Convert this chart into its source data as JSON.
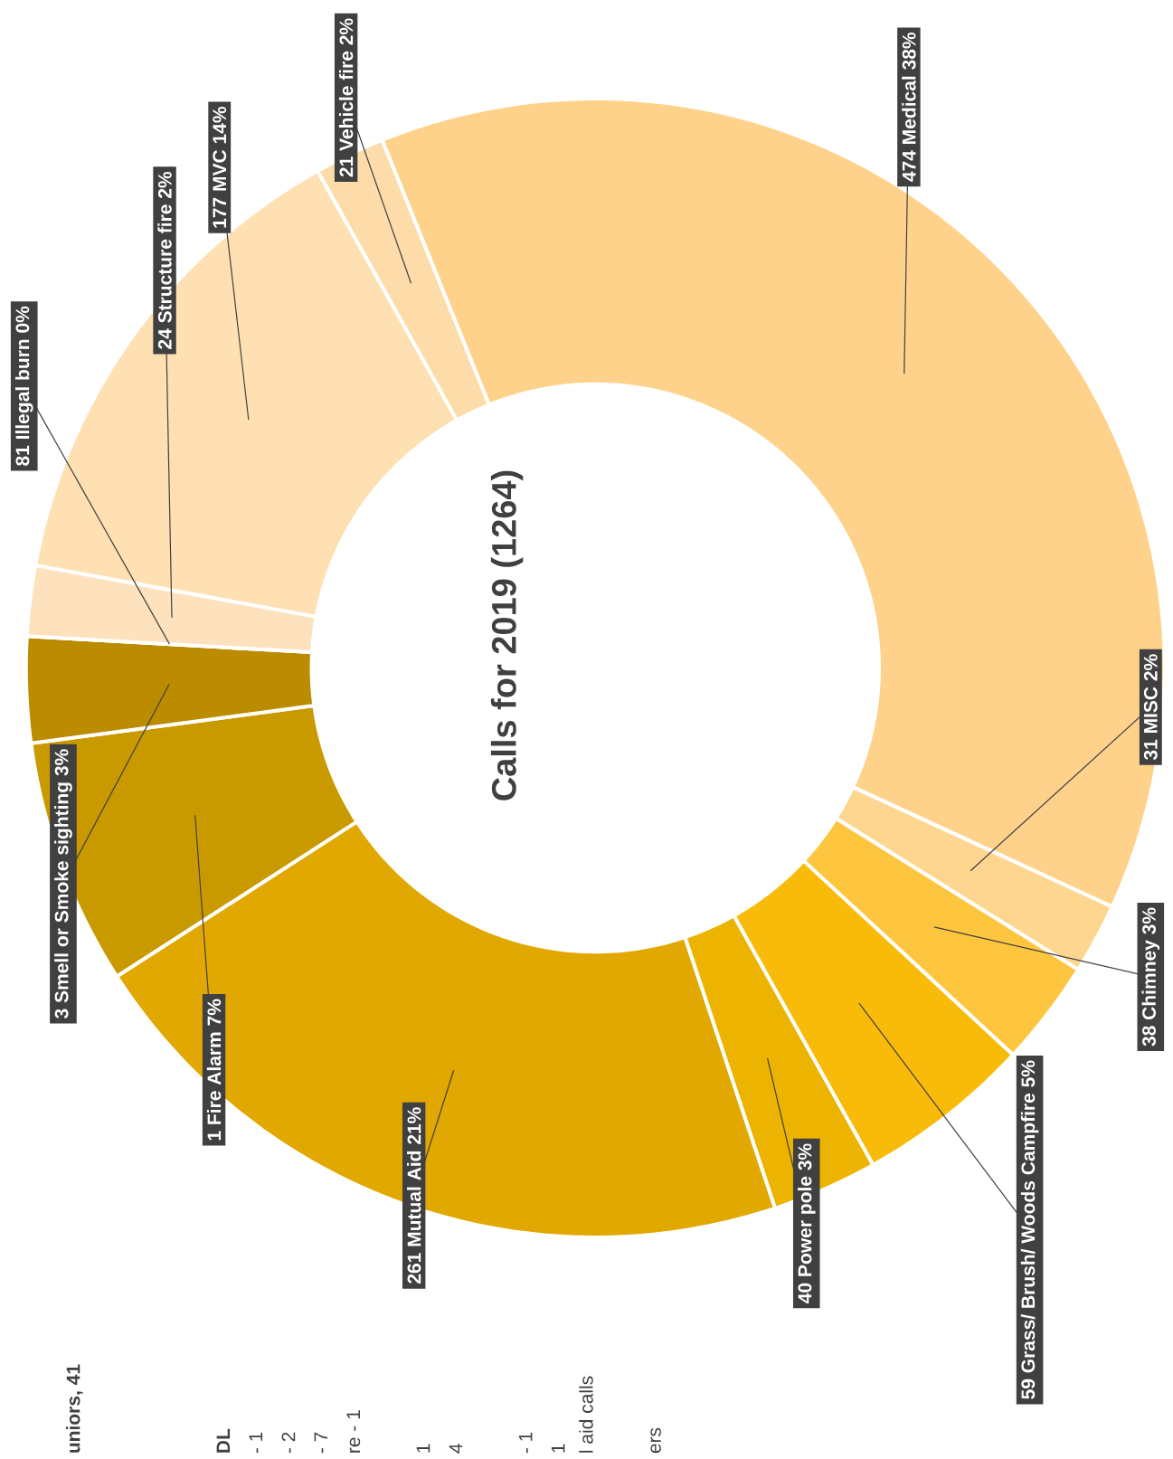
{
  "chart_data": {
    "type": "donut",
    "title": "Calls for 2019 (1264)",
    "categories": [
      "474 Medical 38%",
      "31 MISC 2%",
      "38 Chimney 3%",
      "59 Grass/    Brush/    Woods  Campfire 5%",
      "40 Power pole 3%",
      "261 Mutual Aid 21%",
      "1 Fire Alarm 7%",
      "3 Smell or Smoke sighting 3%",
      "81 Illegal burn 0%",
      "24 Structure fire 2%",
      "177 MVC 14%",
      "21 Vehicle fire 2%"
    ],
    "values": [
      38,
      2,
      3,
      5,
      3,
      21,
      7,
      3,
      0,
      2,
      14,
      2
    ],
    "colors": [
      "#fed28b",
      "#fed690",
      "#fec63e",
      "#f8bb0a",
      "#ecb300",
      "#e0a800",
      "#c99a00",
      "#bb8c00",
      "#c8c8c8",
      "#fde2bd",
      "#fee0b2",
      "#fddcaa"
    ],
    "annotations": [
      "uniors, 41",
      "DL",
      "- 1",
      "- 2",
      "- 7",
      "re - 1",
      "1",
      "4",
      "- 1",
      "1",
      "l aid calls",
      "ers"
    ]
  }
}
